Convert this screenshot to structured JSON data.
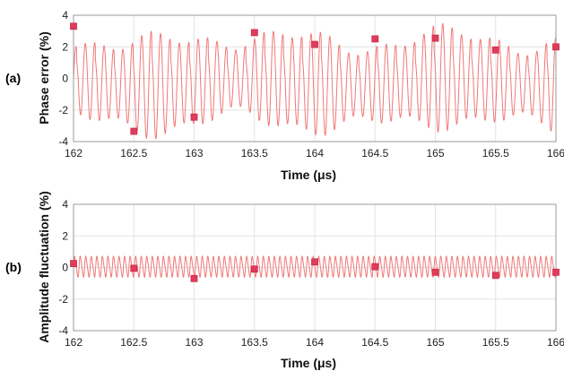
{
  "chart_data": [
    {
      "type": "line",
      "panel_label": "(a)",
      "xlabel": "Time (μs)",
      "ylabel": "Phase error (%)",
      "xlim": [
        162,
        166
      ],
      "ylim": [
        -4,
        4
      ],
      "xticks": [
        162,
        162.5,
        163,
        163.5,
        164,
        164.5,
        165,
        165.5,
        166
      ],
      "xtick_labels": [
        "162",
        "162.5",
        "163",
        "163.5",
        "164",
        "164.5",
        "165",
        "165.5",
        "166"
      ],
      "yticks": [
        -4,
        -2,
        0,
        2,
        4
      ],
      "ytick_labels": [
        "-4",
        "-2",
        "0",
        "2",
        "4"
      ],
      "grid": true,
      "line_color": "#f07878",
      "marker_color": "#e03c5a",
      "oscillation_period": 0.078,
      "markers": {
        "x": [
          162,
          162.5,
          163,
          163.5,
          164,
          164.5,
          165,
          165.5,
          166
        ],
        "y": [
          3.3,
          -3.35,
          -2.45,
          2.9,
          2.15,
          2.5,
          2.55,
          1.8,
          2.0
        ]
      }
    },
    {
      "type": "line",
      "panel_label": "(b)",
      "xlabel": "Time (μs)",
      "ylabel": "Amplitude fluctuation (%)",
      "xlim": [
        162,
        166
      ],
      "ylim": [
        -4,
        4
      ],
      "xticks": [
        162,
        162.5,
        163,
        163.5,
        164,
        164.5,
        165,
        165.5,
        166
      ],
      "xtick_labels": [
        "162",
        "162.5",
        "163",
        "163.5",
        "164",
        "164.5",
        "165",
        "165.5",
        "166"
      ],
      "yticks": [
        -4,
        -2,
        0,
        2,
        4
      ],
      "ytick_labels": [
        "-4",
        "-2",
        "0",
        "2",
        "4"
      ],
      "grid": true,
      "line_color": "#f07878",
      "marker_color": "#e03c5a",
      "oscillation_period": 0.046,
      "markers": {
        "x": [
          162,
          162.5,
          163,
          163.5,
          164,
          164.5,
          165,
          165.5,
          166
        ],
        "y": [
          0.25,
          -0.05,
          -0.7,
          -0.1,
          0.35,
          0.05,
          -0.3,
          -0.5,
          -0.3
        ]
      }
    }
  ]
}
